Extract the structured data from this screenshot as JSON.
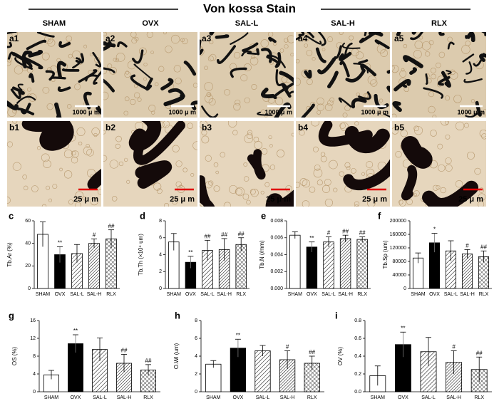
{
  "title": "Von kossa Stain",
  "columns": [
    "SHAM",
    "OVX",
    "SAL-L",
    "SAL-H",
    "RLX"
  ],
  "images": {
    "row_a": {
      "labels": [
        "a1",
        "a2",
        "a3",
        "a4",
        "a5"
      ],
      "scale": "1000 μ m"
    },
    "row_b": {
      "labels": [
        "b1",
        "b2",
        "b3",
        "b4",
        "b5"
      ],
      "scale": "25 μ m"
    }
  },
  "chart_data": [
    {
      "type": "bar",
      "label": "c",
      "ylabel": "Tb.Ar (%)",
      "categories": [
        "SHAM",
        "OVX",
        "SAL-L",
        "SAL-H",
        "RLX"
      ],
      "values": [
        48,
        30,
        31,
        40,
        44
      ],
      "errors": [
        11,
        7,
        8,
        4,
        8
      ],
      "annotations": [
        null,
        "**",
        null,
        "#",
        "##"
      ],
      "ylim": [
        0,
        60
      ],
      "yticks": [
        0,
        20,
        40,
        60
      ]
    },
    {
      "type": "bar",
      "label": "d",
      "ylabel": "Tb.Th (×10⁴ um)",
      "categories": [
        "SHAM",
        "OVX",
        "SAL-L",
        "SAL-H",
        "RLX"
      ],
      "values": [
        5.5,
        3.1,
        4.5,
        4.6,
        5.2
      ],
      "errors": [
        1.0,
        0.7,
        1.2,
        1.3,
        0.8
      ],
      "annotations": [
        null,
        "**",
        "##",
        "##",
        "##"
      ],
      "ylim": [
        0,
        8
      ],
      "yticks": [
        0,
        2,
        4,
        6,
        8
      ]
    },
    {
      "type": "bar",
      "label": "e",
      "ylabel": "Tb.N (/mm)",
      "categories": [
        "SHAM",
        "OVX",
        "SAL-L",
        "SAL-H",
        "RLX"
      ],
      "values": [
        0.0063,
        0.0049,
        0.0055,
        0.0059,
        0.0058
      ],
      "errors": [
        0.0004,
        0.0006,
        0.0006,
        0.0004,
        0.0003
      ],
      "annotations": [
        null,
        "**",
        "#",
        "##",
        "##"
      ],
      "ylim": [
        0,
        0.008
      ],
      "yticks": [
        {
          "value": 0,
          "label": "0.000"
        },
        {
          "value": 0.002,
          "label": "0.002"
        },
        {
          "value": 0.004,
          "label": "0.004"
        },
        {
          "value": 0.006,
          "label": "0.006"
        },
        {
          "value": 0.008,
          "label": "0.008"
        }
      ]
    },
    {
      "type": "bar",
      "label": "f",
      "ylabel": "Tb.Sp (um)",
      "categories": [
        "SHAM",
        "OVX",
        "SAL-L",
        "SAL-H",
        "RLX"
      ],
      "values": [
        90000,
        135000,
        111000,
        102000,
        94000
      ],
      "errors": [
        15000,
        28000,
        30000,
        13000,
        17000
      ],
      "annotations": [
        null,
        "*",
        null,
        "#",
        "##"
      ],
      "ylim": [
        0,
        200000
      ],
      "yticks": [
        0,
        40000,
        80000,
        120000,
        160000,
        200000
      ]
    },
    {
      "type": "bar",
      "label": "g",
      "ylabel": "OS (%)",
      "categories": [
        "SHAM",
        "OVX",
        "SAL-L",
        "SAL-H",
        "RLX"
      ],
      "values": [
        3.8,
        10.8,
        9.5,
        6.4,
        4.9
      ],
      "errors": [
        1.0,
        2.0,
        2.6,
        2.0,
        1.2
      ],
      "annotations": [
        null,
        "**",
        null,
        "##",
        "##"
      ],
      "ylim": [
        0,
        16
      ],
      "yticks": [
        0,
        4,
        8,
        12,
        16
      ]
    },
    {
      "type": "bar",
      "label": "h",
      "ylabel": "O.Wi (um)",
      "categories": [
        "SHAM",
        "OVX",
        "SAL-L",
        "SAL-H",
        "RLX"
      ],
      "values": [
        3.1,
        4.9,
        4.6,
        3.6,
        3.2
      ],
      "errors": [
        0.4,
        1.0,
        0.6,
        1.0,
        0.8
      ],
      "annotations": [
        null,
        "**",
        null,
        "#",
        "##"
      ],
      "ylim": [
        0,
        8
      ],
      "yticks": [
        0,
        2,
        4,
        6,
        8
      ]
    },
    {
      "type": "bar",
      "label": "i",
      "ylabel": "OV (%)",
      "categories": [
        "SHAM",
        "OVX",
        "SAL-L",
        "SAL-H",
        "RLX"
      ],
      "values": [
        0.18,
        0.53,
        0.45,
        0.33,
        0.25
      ],
      "errors": [
        0.11,
        0.14,
        0.16,
        0.13,
        0.14
      ],
      "annotations": [
        null,
        "**",
        null,
        "#",
        "##"
      ],
      "ylim": [
        0,
        0.8
      ],
      "yticks": [
        {
          "value": 0,
          "label": "0.0"
        },
        0.2,
        0.4,
        0.6,
        0.8
      ]
    }
  ]
}
